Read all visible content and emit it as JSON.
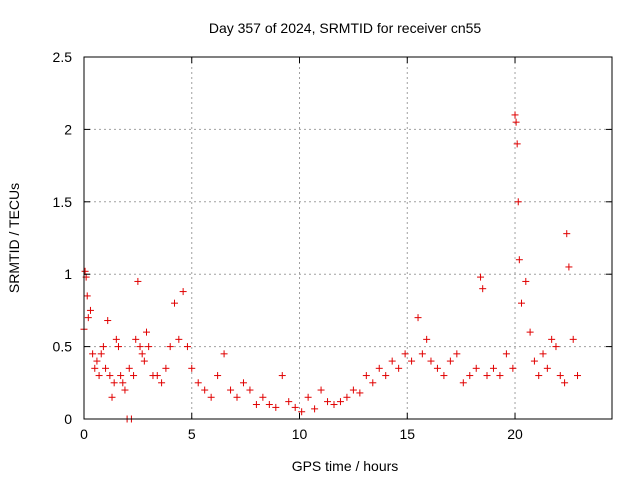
{
  "chart_data": {
    "type": "scatter",
    "title": "Day 357 of 2024, SRMTID for receiver cn55",
    "xlabel": "GPS time / hours",
    "ylabel": "SRMTID / TECUs",
    "xlim": [
      0,
      24.5
    ],
    "ylim": [
      0,
      2.5
    ],
    "xticks": [
      0,
      5,
      10,
      15,
      20
    ],
    "xtick_labels": [
      "0",
      "5",
      "10",
      "15",
      "20"
    ],
    "yticks": [
      0,
      0.5,
      1,
      1.5,
      2,
      2.5
    ],
    "ytick_labels": [
      "0",
      "0.5",
      "1",
      "1.5",
      "2",
      "2.5"
    ],
    "grid": true,
    "legend": "none",
    "marker": "plus",
    "color": "#e00000",
    "series": [
      {
        "name": "SRMTID",
        "x": [
          0.0,
          0.05,
          0.1,
          0.15,
          0.2,
          0.3,
          0.4,
          0.5,
          0.6,
          0.7,
          0.8,
          0.9,
          1.0,
          1.1,
          1.2,
          1.3,
          1.4,
          1.5,
          1.6,
          1.7,
          1.8,
          1.9,
          2.0,
          2.1,
          2.2,
          2.3,
          2.4,
          2.5,
          2.6,
          2.7,
          2.8,
          2.9,
          3.0,
          3.2,
          3.4,
          3.6,
          3.8,
          4.0,
          4.2,
          4.4,
          4.6,
          4.8,
          5.0,
          5.3,
          5.6,
          5.9,
          6.2,
          6.5,
          6.8,
          7.1,
          7.4,
          7.7,
          8.0,
          8.3,
          8.6,
          8.9,
          9.2,
          9.5,
          9.8,
          10.1,
          10.4,
          10.7,
          11.0,
          11.3,
          11.6,
          11.9,
          12.2,
          12.5,
          12.8,
          13.1,
          13.4,
          13.7,
          14.0,
          14.3,
          14.6,
          14.9,
          15.2,
          15.5,
          15.7,
          15.9,
          16.1,
          16.4,
          16.7,
          17.0,
          17.3,
          17.6,
          17.9,
          18.2,
          18.4,
          18.5,
          18.7,
          19.0,
          19.3,
          19.6,
          19.9,
          20.0,
          20.05,
          20.1,
          20.15,
          20.2,
          20.3,
          20.5,
          20.7,
          20.9,
          21.1,
          21.3,
          21.5,
          21.7,
          21.9,
          22.1,
          22.3,
          22.4,
          22.5,
          22.7,
          22.9
        ],
        "y": [
          0.62,
          1.02,
          0.98,
          0.85,
          0.7,
          0.75,
          0.45,
          0.35,
          0.4,
          0.3,
          0.45,
          0.5,
          0.35,
          0.68,
          0.3,
          0.15,
          0.25,
          0.55,
          0.5,
          0.3,
          0.25,
          0.2,
          0.0,
          0.35,
          0.0,
          0.3,
          0.55,
          0.95,
          0.5,
          0.45,
          0.4,
          0.6,
          0.5,
          0.3,
          0.3,
          0.25,
          0.35,
          0.5,
          0.8,
          0.55,
          0.88,
          0.5,
          0.35,
          0.25,
          0.2,
          0.15,
          0.3,
          0.45,
          0.2,
          0.15,
          0.25,
          0.2,
          0.1,
          0.15,
          0.1,
          0.08,
          0.3,
          0.12,
          0.08,
          0.05,
          0.15,
          0.07,
          0.2,
          0.12,
          0.1,
          0.12,
          0.15,
          0.2,
          0.18,
          0.3,
          0.25,
          0.35,
          0.3,
          0.4,
          0.35,
          0.45,
          0.4,
          0.7,
          0.45,
          0.55,
          0.4,
          0.35,
          0.3,
          0.4,
          0.45,
          0.25,
          0.3,
          0.35,
          0.98,
          0.9,
          0.3,
          0.35,
          0.3,
          0.45,
          0.35,
          2.1,
          2.05,
          1.9,
          1.5,
          1.1,
          0.8,
          0.95,
          0.6,
          0.4,
          0.3,
          0.45,
          0.35,
          0.55,
          0.5,
          0.3,
          0.25,
          1.28,
          1.05,
          0.55,
          0.3
        ]
      }
    ]
  }
}
